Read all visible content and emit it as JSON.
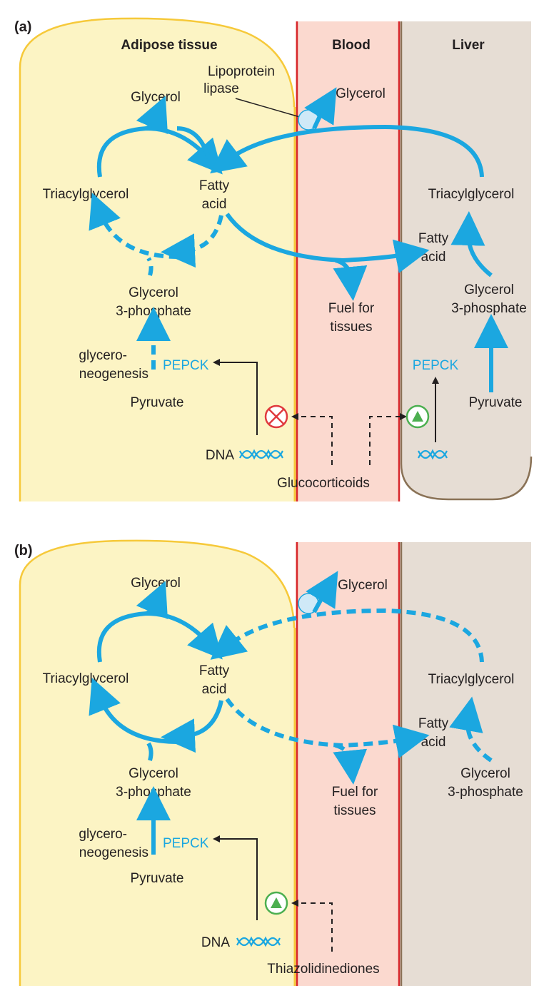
{
  "colors": {
    "pathway": "#1ba7e0",
    "adipose": "#fcf4c4",
    "blood": "#fbd9cf",
    "liver": "#e6ddd4",
    "inhibition": "#e03a3e",
    "activation": "#4caf50"
  },
  "panel_a": {
    "label": "(a)",
    "header_adipose": "Adipose tissue",
    "header_blood": "Blood",
    "header_liver": "Liver",
    "lipoprotein_lipase_1": "Lipoprotein",
    "lipoprotein_lipase_2": "lipase",
    "glycerol_adipose": "Glycerol",
    "glycerol_blood": "Glycerol",
    "tag_adipose": "Triacylglycerol",
    "fa_adipose_1": "Fatty",
    "fa_adipose_2": "acid",
    "g3p_adipose_1": "Glycerol",
    "g3p_adipose_2": "3-phosphate",
    "glyceroneo_1": "glycero-",
    "glyceroneo_2": "neogenesis",
    "pepck_adipose": "PEPCK",
    "pyruvate_adipose": "Pyruvate",
    "dna": "DNA",
    "fuel_1": "Fuel for",
    "fuel_2": "tissues",
    "tag_liver": "Triacylglycerol",
    "fa_liver_1": "Fatty",
    "fa_liver_2": "acid",
    "g3p_liver_1": "Glycerol",
    "g3p_liver_2": "3-phosphate",
    "pepck_liver": "PEPCK",
    "pyruvate_liver": "Pyruvate",
    "drug": "Glucocorticoids"
  },
  "panel_b": {
    "label": "(b)",
    "glycerol_adipose": "Glycerol",
    "glycerol_blood": "Glycerol",
    "tag_adipose": "Triacylglycerol",
    "fa_adipose_1": "Fatty",
    "fa_adipose_2": "acid",
    "g3p_adipose_1": "Glycerol",
    "g3p_adipose_2": "3-phosphate",
    "glyceroneo_1": "glycero-",
    "glyceroneo_2": "neogenesis",
    "pepck_adipose": "PEPCK",
    "pyruvate_adipose": "Pyruvate",
    "dna": "DNA",
    "fuel_1": "Fuel for",
    "fuel_2": "tissues",
    "tag_liver": "Triacylglycerol",
    "fa_liver_1": "Fatty",
    "fa_liver_2": "acid",
    "g3p_liver_1": "Glycerol",
    "g3p_liver_2": "3-phosphate",
    "drug": "Thiazolidinediones"
  }
}
